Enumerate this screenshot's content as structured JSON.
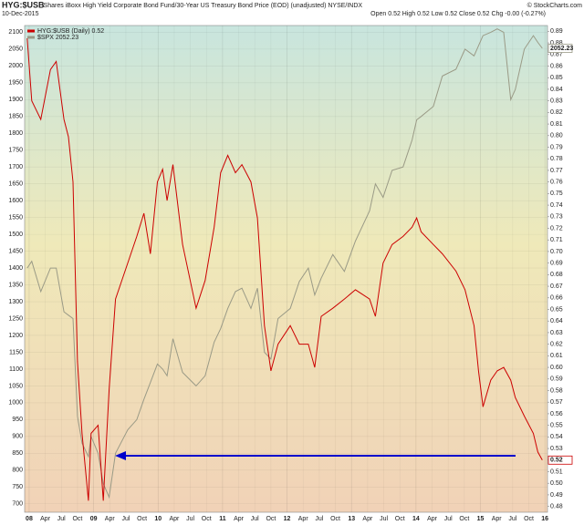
{
  "chart_data": {
    "type": "line",
    "title": "HYG:$USB",
    "subtitle": "iShares iBoxx High Yield Corporate Bond Fund/30-Year US Treasury Bond Price (EOD) (unadjusted) NYSE/INDX",
    "date": "10-Dec-2015",
    "ohlc": "Open 0.52  High 0.52  Low 0.52  Close 0.52  Chg -0.00 (-0.27%)",
    "credit": "© StockCharts.com",
    "grid": true,
    "x": [
      2007.97,
      2008.04,
      2008.18,
      2008.33,
      2008.42,
      2008.54,
      2008.61,
      2008.68,
      2008.75,
      2008.82,
      2008.92,
      2008.96,
      2009.07,
      2009.15,
      2009.24,
      2009.34,
      2009.53,
      2009.67,
      2009.78,
      2009.88,
      2009.99,
      2010.07,
      2010.14,
      2010.23,
      2010.38,
      2010.59,
      2010.73,
      2010.87,
      2010.97,
      2011.08,
      2011.2,
      2011.3,
      2011.44,
      2011.54,
      2011.65,
      2011.75,
      2011.86,
      2012.05,
      2012.19,
      2012.33,
      2012.43,
      2012.53,
      2012.71,
      2012.89,
      2013.06,
      2013.28,
      2013.37,
      2013.49,
      2013.63,
      2013.8,
      2013.94,
      2014.01,
      2014.08,
      2014.27,
      2014.41,
      2014.62,
      2014.76,
      2014.9,
      2014.97,
      2015.04,
      2015.16,
      2015.26,
      2015.36,
      2015.47,
      2015.54,
      2015.68,
      2015.82,
      2015.89,
      2015.96
    ],
    "series": [
      {
        "name": "HYG:$USB (Daily) 0.52",
        "color": "#cc0000",
        "axis": "y2",
        "values": [
          0.884,
          0.83,
          0.814,
          0.857,
          0.864,
          0.814,
          0.799,
          0.76,
          0.605,
          0.543,
          0.485,
          0.543,
          0.55,
          0.485,
          0.581,
          0.659,
          0.69,
          0.713,
          0.733,
          0.698,
          0.76,
          0.771,
          0.744,
          0.775,
          0.706,
          0.651,
          0.675,
          0.721,
          0.768,
          0.783,
          0.768,
          0.775,
          0.76,
          0.729,
          0.636,
          0.597,
          0.62,
          0.636,
          0.62,
          0.62,
          0.6,
          0.644,
          0.651,
          0.659,
          0.667,
          0.659,
          0.644,
          0.69,
          0.706,
          0.713,
          0.721,
          0.729,
          0.717,
          0.706,
          0.698,
          0.683,
          0.667,
          0.636,
          0.597,
          0.566,
          0.589,
          0.597,
          0.6,
          0.589,
          0.574,
          0.558,
          0.543,
          0.527,
          0.52
        ]
      },
      {
        "name": "$SPX 2052.23",
        "color": "#9a9a86",
        "axis": "y",
        "values": [
          1400,
          1420,
          1330,
          1400,
          1400,
          1270,
          1260,
          1250,
          960,
          880,
          840,
          900,
          850,
          760,
          720,
          850,
          920,
          950,
          1010,
          1060,
          1115,
          1100,
          1080,
          1190,
          1090,
          1050,
          1080,
          1180,
          1220,
          1280,
          1330,
          1340,
          1280,
          1340,
          1150,
          1130,
          1250,
          1280,
          1360,
          1400,
          1320,
          1370,
          1440,
          1390,
          1480,
          1570,
          1650,
          1610,
          1690,
          1700,
          1780,
          1840,
          1850,
          1880,
          1970,
          1990,
          2050,
          2030,
          2060,
          2090,
          2100,
          2110,
          2100,
          1900,
          1930,
          2050,
          2090,
          2070,
          2052.23
        ]
      }
    ],
    "xlim": [
      2007.93,
      2016.04
    ],
    "xticks": [
      {
        "value": 2008,
        "label": "08"
      },
      {
        "value": 2008.25,
        "label": "Apr"
      },
      {
        "value": 2008.5,
        "label": "Jul"
      },
      {
        "value": 2008.75,
        "label": "Oct"
      },
      {
        "value": 2009,
        "label": "09"
      },
      {
        "value": 2009.25,
        "label": "Apr"
      },
      {
        "value": 2009.5,
        "label": "Jul"
      },
      {
        "value": 2009.75,
        "label": "Oct"
      },
      {
        "value": 2010,
        "label": "10"
      },
      {
        "value": 2010.25,
        "label": "Apr"
      },
      {
        "value": 2010.5,
        "label": "Jul"
      },
      {
        "value": 2010.75,
        "label": "Oct"
      },
      {
        "value": 2011,
        "label": "11"
      },
      {
        "value": 2011.25,
        "label": "Apr"
      },
      {
        "value": 2011.5,
        "label": "Jul"
      },
      {
        "value": 2011.75,
        "label": "Oct"
      },
      {
        "value": 2012,
        "label": "12"
      },
      {
        "value": 2012.25,
        "label": "Apr"
      },
      {
        "value": 2012.5,
        "label": "Jul"
      },
      {
        "value": 2012.75,
        "label": "Oct"
      },
      {
        "value": 2013,
        "label": "13"
      },
      {
        "value": 2013.25,
        "label": "Apr"
      },
      {
        "value": 2013.5,
        "label": "Jul"
      },
      {
        "value": 2013.75,
        "label": "Oct"
      },
      {
        "value": 2014,
        "label": "14"
      },
      {
        "value": 2014.25,
        "label": "Apr"
      },
      {
        "value": 2014.5,
        "label": "Jul"
      },
      {
        "value": 2014.75,
        "label": "Oct"
      },
      {
        "value": 2015,
        "label": "15"
      },
      {
        "value": 2015.25,
        "label": "Apr"
      },
      {
        "value": 2015.5,
        "label": "Jul"
      },
      {
        "value": 2015.75,
        "label": "Oct"
      },
      {
        "value": 2016,
        "label": "16"
      }
    ],
    "ylim": [
      675,
      2120
    ],
    "yticks": [
      700,
      750,
      800,
      850,
      900,
      950,
      1000,
      1050,
      1100,
      1150,
      1200,
      1250,
      1300,
      1350,
      1400,
      1450,
      1500,
      1550,
      1600,
      1650,
      1700,
      1750,
      1800,
      1850,
      1900,
      1950,
      2000,
      2050,
      2100
    ],
    "y2lim": [
      0.475,
      0.895
    ],
    "y2ticks": [
      0.48,
      0.49,
      {
        "value": 0.5,
        "label": "0.50"
      },
      0.51,
      0.52,
      0.53,
      0.54,
      0.55,
      0.56,
      0.57,
      0.58,
      0.59,
      {
        "value": 0.6,
        "label": "0.60"
      },
      0.61,
      0.62,
      0.63,
      0.64,
      0.65,
      0.66,
      0.67,
      0.68,
      0.69,
      {
        "value": 0.7,
        "label": "0.70"
      },
      0.71,
      0.72,
      0.73,
      0.74,
      0.75,
      0.76,
      0.77,
      0.78,
      0.79,
      {
        "value": 0.8,
        "label": "0.80"
      },
      0.81,
      0.82,
      0.83,
      0.84,
      0.85,
      0.86,
      0.87,
      0.88,
      0.89
    ]
  }
}
